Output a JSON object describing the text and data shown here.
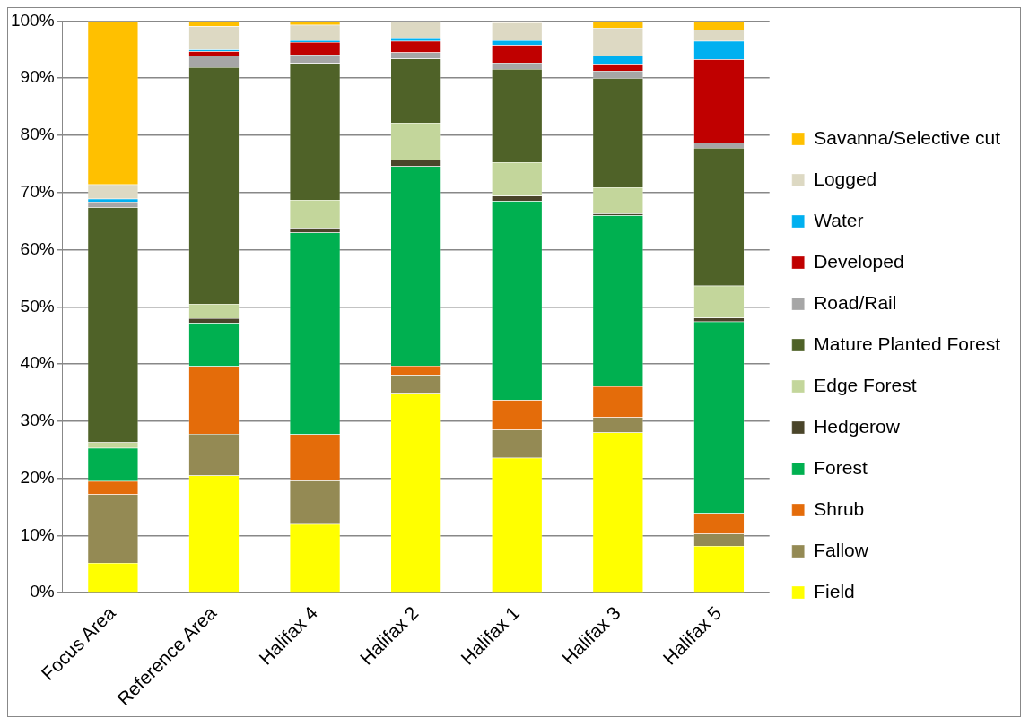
{
  "chart_data": {
    "type": "bar",
    "stacked": true,
    "legend": "right",
    "grid": "y",
    "categories": [
      "Focus Area",
      "Reference Area",
      "Halifax 4",
      "Halifax 2",
      "Halifax 1",
      "Halifax 3",
      "Halifax 5"
    ],
    "ylim": [
      0,
      100
    ],
    "yticks": [
      {
        "value": 0,
        "label": "0%"
      },
      {
        "value": 10,
        "label": "10%"
      },
      {
        "value": 20,
        "label": "20%"
      },
      {
        "value": 30,
        "label": "30%"
      },
      {
        "value": 40,
        "label": "40%"
      },
      {
        "value": 50,
        "label": "50%"
      },
      {
        "value": 60,
        "label": "60%"
      },
      {
        "value": 70,
        "label": "70%"
      },
      {
        "value": 80,
        "label": "80%"
      },
      {
        "value": 90,
        "label": "90%"
      },
      {
        "value": 100,
        "label": "100%"
      }
    ],
    "series": [
      {
        "name": "Field",
        "color": "#ffff00",
        "values": [
          5.2,
          20.5,
          12,
          34.9,
          23.6,
          28,
          8.2
        ]
      },
      {
        "name": "Fallow",
        "color": "#948a54",
        "values": [
          12,
          7.3,
          7.6,
          3.2,
          4.9,
          2.7,
          2.1
        ]
      },
      {
        "name": "Shrub",
        "color": "#e46c0a",
        "values": [
          2.3,
          11.8,
          8.1,
          1.6,
          5.2,
          5.4,
          3.6
        ]
      },
      {
        "name": "Forest",
        "color": "#00b050",
        "values": [
          5.8,
          7.6,
          35.3,
          34.9,
          34.8,
          29.9,
          33.5
        ]
      },
      {
        "name": "Hedgerow",
        "color": "#4a452a",
        "values": [
          0,
          0.8,
          0.8,
          1.1,
          0.9,
          0.3,
          0.7
        ]
      },
      {
        "name": "Edge Forest",
        "color": "#c3d69b",
        "values": [
          1,
          2.5,
          4.9,
          6.5,
          5.9,
          4.6,
          5.6
        ]
      },
      {
        "name": "Mature Planted Forest",
        "color": "#4f6228",
        "values": [
          41.1,
          41.4,
          23.9,
          11.2,
          16.3,
          19.1,
          24.1
        ]
      },
      {
        "name": "Road/Rail",
        "color": "#a6a6a6",
        "values": [
          1,
          2,
          1.5,
          1.1,
          1.1,
          1.3,
          0.9
        ]
      },
      {
        "name": "Developed",
        "color": "#c00000",
        "values": [
          0,
          0.8,
          2.2,
          2,
          3.1,
          1.2,
          14.6
        ]
      },
      {
        "name": "Water",
        "color": "#00b0f0",
        "values": [
          0.5,
          0.3,
          0.3,
          0.6,
          0.8,
          1.4,
          3.2
        ]
      },
      {
        "name": "Logged",
        "color": "#ddd9c3",
        "values": [
          2.5,
          4.1,
          2.7,
          2.9,
          3.1,
          4.9,
          2
        ]
      },
      {
        "name": "Savanna/Selective cut",
        "color": "#ffc000",
        "values": [
          28.6,
          0.9,
          0.7,
          0,
          0.3,
          1.2,
          1.5
        ]
      }
    ]
  }
}
